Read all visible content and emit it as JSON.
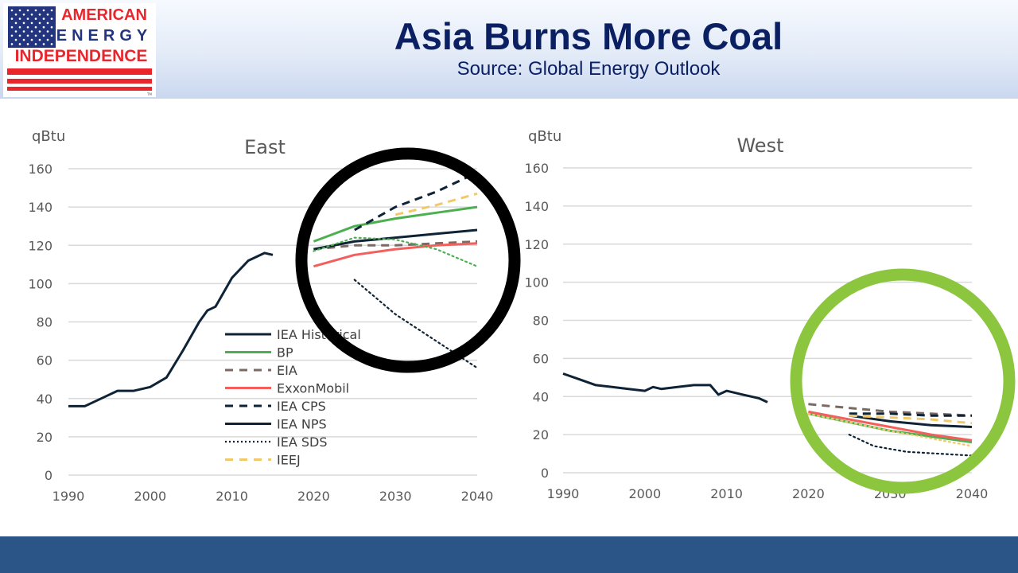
{
  "header": {
    "title": "Asia Burns More Coal",
    "subtitle": "Source: Global Energy Outlook"
  },
  "logo": {
    "line1": "AMERICAN",
    "line2": "ENERGY",
    "line3": "INDEPENDENCE",
    "tm": "TM",
    "colors": {
      "red": "#e8262c",
      "blue": "#23357e",
      "white": "#ffffff"
    }
  },
  "highlight_colors": {
    "east_ring": "#000000",
    "west_ring": "#8cc63f"
  },
  "legend": [
    {
      "label": "IEA Historical",
      "color": "#0e2336",
      "dash": "solid"
    },
    {
      "label": "BP",
      "color": "#4caf50",
      "dash": "solid"
    },
    {
      "label": "EIA",
      "color": "#7b6a64",
      "dash": "dash"
    },
    {
      "label": "ExxonMobil",
      "color": "#f25f5c",
      "dash": "solid"
    },
    {
      "label": "IEA CPS",
      "color": "#0e2336",
      "dash": "dash"
    },
    {
      "label": "IEA NPS",
      "color": "#0e2336",
      "dash": "solid"
    },
    {
      "label": "IEA SDS",
      "color": "#0e2336",
      "dash": "dot"
    },
    {
      "label": "IEEJ",
      "color": "#f0c96a",
      "dash": "dash"
    }
  ],
  "chart_data": [
    {
      "type": "line",
      "title": "East",
      "ylabel": "qBtu",
      "xlim": [
        1990,
        2040
      ],
      "ylim": [
        0,
        160
      ],
      "x_ticks": [
        1990,
        2000,
        2010,
        2020,
        2030,
        2040
      ],
      "y_ticks": [
        0,
        20,
        40,
        60,
        80,
        100,
        120,
        140,
        160
      ],
      "grid": true,
      "legend_position": "bottom-center",
      "series": [
        {
          "name": "IEA Historical",
          "x": [
            1990,
            1992,
            1994,
            1996,
            1998,
            2000,
            2002,
            2004,
            2006,
            2007,
            2008,
            2010,
            2012,
            2014,
            2015
          ],
          "y": [
            36,
            36,
            40,
            44,
            44,
            46,
            51,
            65,
            80,
            86,
            88,
            103,
            112,
            116,
            115
          ]
        },
        {
          "name": "BP",
          "x": [
            2020,
            2025,
            2030,
            2035,
            2040
          ],
          "y": [
            122,
            130,
            134,
            137,
            140
          ]
        },
        {
          "name": "EIA",
          "x": [
            2020,
            2025,
            2030,
            2035,
            2040
          ],
          "y": [
            118,
            120,
            120,
            121,
            122
          ]
        },
        {
          "name": "ExxonMobil",
          "x": [
            2020,
            2025,
            2030,
            2035,
            2040
          ],
          "y": [
            109,
            115,
            118,
            120,
            121
          ]
        },
        {
          "name": "IEA CPS",
          "x": [
            2025,
            2030,
            2035,
            2040
          ],
          "y": [
            128,
            140,
            148,
            158
          ]
        },
        {
          "name": "IEA NPS",
          "x": [
            2020,
            2025,
            2030,
            2035,
            2040
          ],
          "y": [
            118,
            122,
            124,
            126,
            128
          ]
        },
        {
          "name": "IEA SDS",
          "x": [
            2025,
            2030,
            2035,
            2040
          ],
          "y": [
            102,
            84,
            70,
            56
          ]
        },
        {
          "name": "IEEJ",
          "x": [
            2030,
            2035,
            2040
          ],
          "y": [
            136,
            141,
            147
          ]
        },
        {
          "name": "",
          "x": [
            2020,
            2025,
            2030,
            2035,
            2040
          ],
          "y": [
            117,
            124,
            123,
            118,
            109
          ]
        }
      ]
    },
    {
      "type": "line",
      "title": "West",
      "ylabel": "qBtu",
      "xlim": [
        1990,
        2040
      ],
      "ylim": [
        0,
        160
      ],
      "x_ticks": [
        1990,
        2000,
        2010,
        2020,
        2030,
        2040
      ],
      "y_ticks": [
        0,
        20,
        40,
        60,
        80,
        100,
        120,
        140,
        160
      ],
      "grid": true,
      "series": [
        {
          "name": "IEA Historical",
          "x": [
            1990,
            1992,
            1994,
            1996,
            1998,
            2000,
            2001,
            2002,
            2004,
            2006,
            2008,
            2009,
            2010,
            2012,
            2014,
            2015
          ],
          "y": [
            52,
            49,
            46,
            45,
            44,
            43,
            45,
            44,
            45,
            46,
            46,
            41,
            43,
            41,
            39,
            37
          ]
        },
        {
          "name": "BP",
          "x": [
            2020,
            2030,
            2040
          ],
          "y": [
            31,
            22,
            16
          ]
        },
        {
          "name": "EIA",
          "x": [
            2020,
            2025,
            2030,
            2035,
            2040
          ],
          "y": [
            36,
            34,
            32,
            31,
            30
          ]
        },
        {
          "name": "ExxonMobil",
          "x": [
            2020,
            2025,
            2030,
            2035,
            2040
          ],
          "y": [
            32,
            28,
            24,
            20,
            17
          ]
        },
        {
          "name": "IEA CPS",
          "x": [
            2025,
            2030,
            2035,
            2040
          ],
          "y": [
            31,
            31,
            30,
            30
          ]
        },
        {
          "name": "IEA NPS",
          "x": [
            2025,
            2030,
            2035,
            2040
          ],
          "y": [
            30,
            27,
            25,
            24
          ]
        },
        {
          "name": "IEA SDS",
          "x": [
            2025,
            2028,
            2032,
            2036,
            2040
          ],
          "y": [
            20,
            14,
            11,
            10,
            9
          ]
        },
        {
          "name": "IEEJ",
          "x": [
            2025,
            2030,
            2035,
            2040
          ],
          "y": [
            30,
            29,
            28,
            26
          ]
        },
        {
          "name": "",
          "x": [
            2020,
            2030,
            2040
          ],
          "y": [
            31,
            22,
            14
          ]
        }
      ]
    }
  ]
}
